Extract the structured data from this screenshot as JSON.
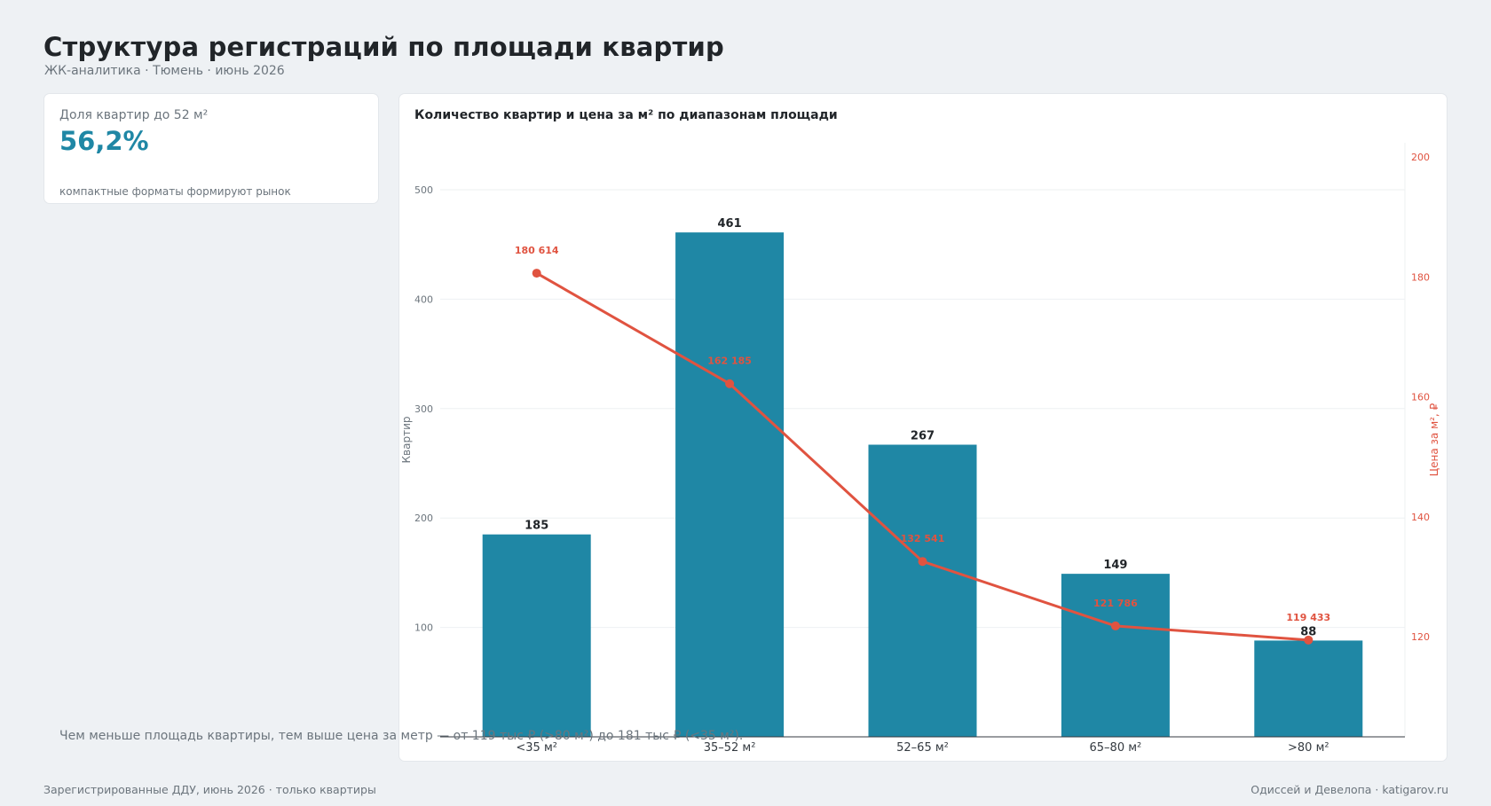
{
  "header": {
    "title": "Структура регистраций по площади квартир",
    "subtitle": "ЖК-аналитика · Тюмень · июнь 2026"
  },
  "kpi": {
    "label": "Доля квартир до 52 м²",
    "value": "56,2%",
    "note": "компактные форматы формируют рынок"
  },
  "insight": {
    "text": "Чем меньше площадь квартиры, тем выше цена за метр — от 119 тыс ₽ (>80 м²) до 181 тыс ₽ (<35 м²)."
  },
  "footer": {
    "source": "Зарегистрированные ДДУ, июнь 2026 · только квартиры",
    "credit": "Одиссей и Девелопа · katigarov.ru"
  },
  "colors": {
    "bar": "#1f87a5",
    "line": "#e05340",
    "accent": "#1f87a5"
  },
  "chart_data": {
    "type": "bar",
    "title": "Количество квартир и цена за м² по диапазонам площади",
    "categories": [
      "<35 м²",
      "35–52 м²",
      "52–65 м²",
      "65–80 м²",
      ">80 м²"
    ],
    "series": [
      {
        "name": "Квартир",
        "type": "bar",
        "axis": "left",
        "values": [
          185,
          461,
          267,
          149,
          88
        ],
        "labels": [
          "185",
          "461",
          "267",
          "149",
          "88"
        ]
      },
      {
        "name": "Цена за м², ₽",
        "type": "line",
        "axis": "right",
        "values": [
          180.614,
          162.185,
          132.541,
          121.786,
          119.433
        ],
        "labels": [
          "180 614",
          "162 185",
          "132 541",
          "121 786",
          "119 433"
        ]
      }
    ],
    "ylabel": "Квартир",
    "y2label": "Цена за м², ₽",
    "ylim": [
      0,
      500
    ],
    "y2lim": [
      100,
      200
    ],
    "yticks": [
      100,
      200,
      300,
      400,
      500
    ],
    "y2ticks": [
      120,
      140,
      160,
      180,
      200
    ],
    "grid": true
  }
}
